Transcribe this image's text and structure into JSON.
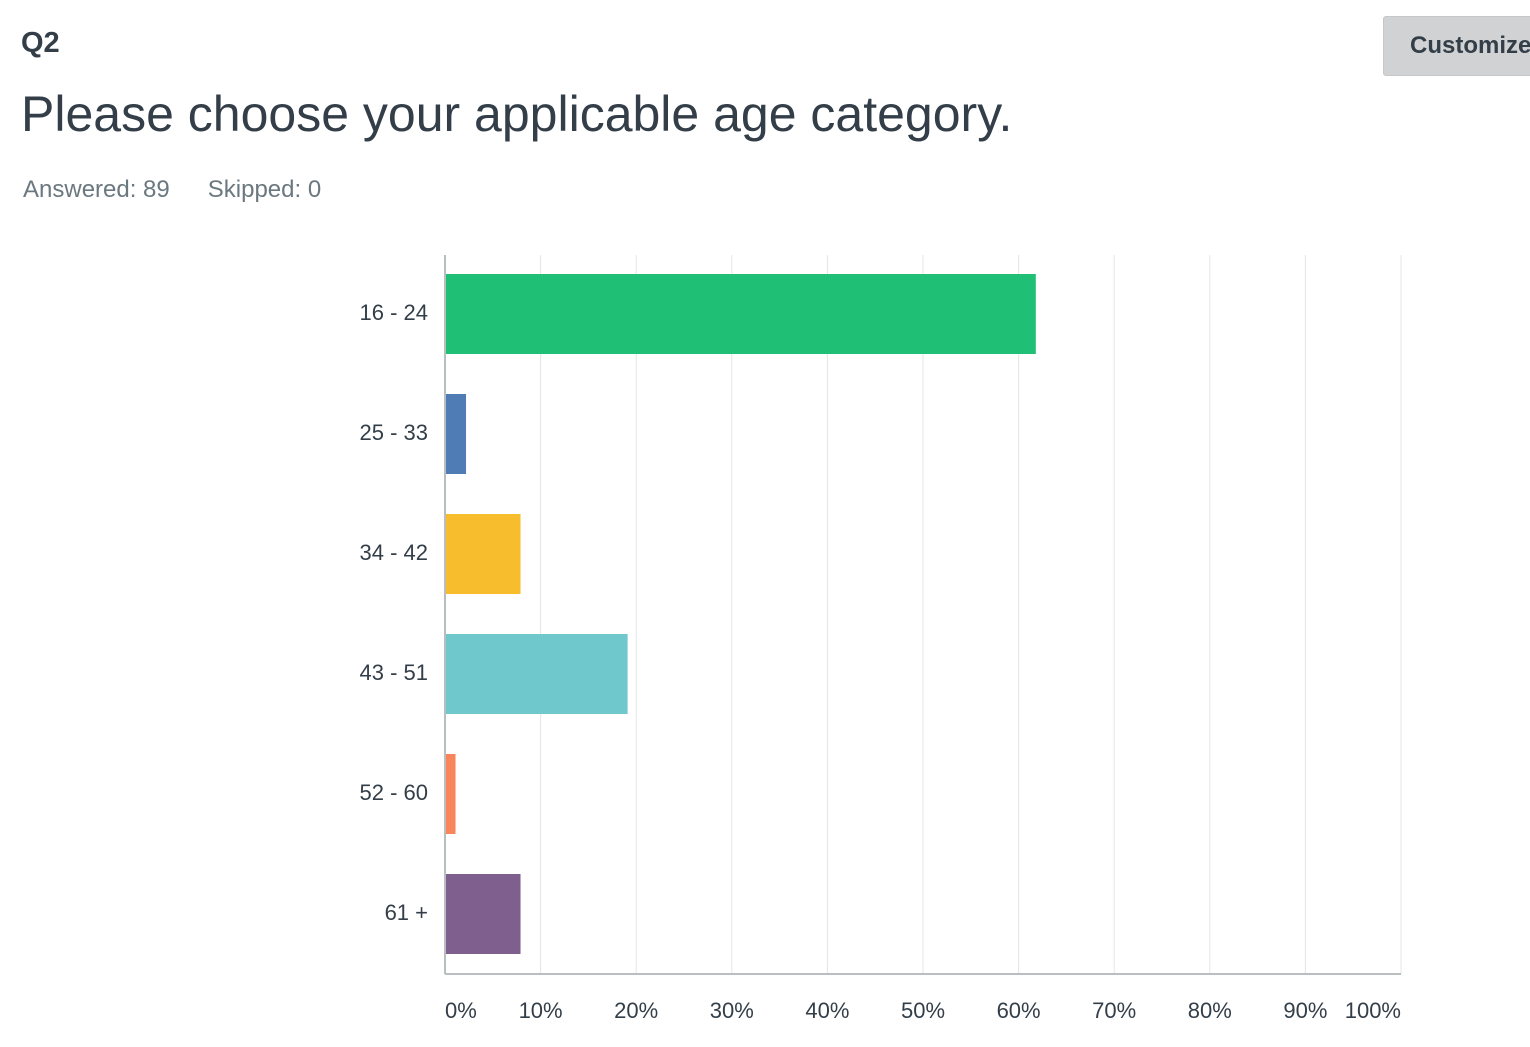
{
  "question": {
    "number": "Q2",
    "title": "Please choose your applicable age category."
  },
  "stats": {
    "answered": "Answered: 89",
    "skipped": "Skipped: 0"
  },
  "toolbar": {
    "customize_label": "Customize"
  },
  "chart_data": {
    "type": "bar",
    "orientation": "horizontal",
    "categories": [
      "16 - 24",
      "25 - 33",
      "34 - 42",
      "43 - 51",
      "52 - 60",
      "61 +"
    ],
    "values": [
      61.8,
      2.2,
      7.9,
      19.1,
      1.1,
      7.9
    ],
    "colors": [
      "#1fbf75",
      "#507cb6",
      "#f7bd2d",
      "#6fc8cb",
      "#f9855a",
      "#7e5f8d"
    ],
    "xlim": [
      0,
      100
    ],
    "xticks": [
      0,
      10,
      20,
      30,
      40,
      50,
      60,
      70,
      80,
      90,
      100
    ],
    "xtick_labels": [
      "0%",
      "10%",
      "20%",
      "30%",
      "40%",
      "50%",
      "60%",
      "70%",
      "80%",
      "90%",
      "100%"
    ],
    "grid": true,
    "legend": "none"
  }
}
